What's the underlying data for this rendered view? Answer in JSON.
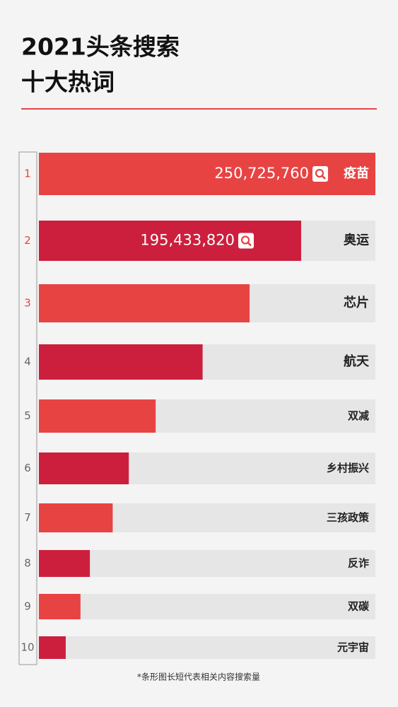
{
  "chart_data": {
    "type": "bar",
    "orientation": "horizontal",
    "title": [
      "2021头条搜索",
      "十大热词"
    ],
    "ranks": [
      1,
      2,
      3,
      4,
      5,
      6,
      7,
      8,
      9,
      10
    ],
    "categories": [
      "疫苗",
      "奥运",
      "芯片",
      "航天",
      "双减",
      "乡村振兴",
      "三孩政策",
      "反诈",
      "双碳",
      "元宇宙"
    ],
    "values": [
      250725760,
      195433820,
      157000000,
      122000000,
      87000000,
      67000000,
      55000000,
      38000000,
      31000000,
      20000000
    ],
    "value_labels": [
      "250,725,760",
      "195,433,820",
      null,
      null,
      null,
      null,
      null,
      null,
      null,
      null
    ],
    "colors": [
      "#e84343",
      "#cc1f3d"
    ],
    "xlim": [
      0,
      250725760
    ],
    "footnote": "*条形图长短代表相关内容搜索量"
  }
}
